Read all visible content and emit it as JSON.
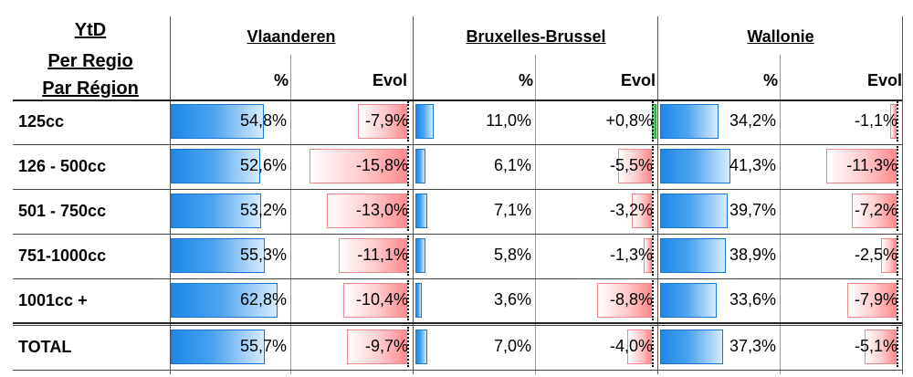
{
  "header": {
    "ytd": "YtD",
    "per_regio": "Per Regio",
    "par_region": "Par Région"
  },
  "regions": [
    {
      "name": "Vlaanderen",
      "pct_label": "%",
      "evol_label": "Evol"
    },
    {
      "name": "Bruxelles-Brussel",
      "pct_label": "%",
      "evol_label": "Evol"
    },
    {
      "name": "Wallonie",
      "pct_label": "%",
      "evol_label": "Evol"
    }
  ],
  "rows": [
    {
      "label": "125cc",
      "cells": [
        {
          "pct": "54,8%",
          "pct_value": 54.8,
          "evol": "-7,9%",
          "evol_value": -7.9
        },
        {
          "pct": "11,0%",
          "pct_value": 11.0,
          "evol": "+0,8%",
          "evol_value": 0.8
        },
        {
          "pct": "34,2%",
          "pct_value": 34.2,
          "evol": "-1,1%",
          "evol_value": -1.1
        }
      ]
    },
    {
      "label": "126 - 500cc",
      "cells": [
        {
          "pct": "52,6%",
          "pct_value": 52.6,
          "evol": "-15,8%",
          "evol_value": -15.8
        },
        {
          "pct": "6,1%",
          "pct_value": 6.1,
          "evol": "-5,5%",
          "evol_value": -5.5
        },
        {
          "pct": "41,3%",
          "pct_value": 41.3,
          "evol": "-11,3%",
          "evol_value": -11.3
        }
      ]
    },
    {
      "label": "501 - 750cc",
      "cells": [
        {
          "pct": "53,2%",
          "pct_value": 53.2,
          "evol": "-13,0%",
          "evol_value": -13.0
        },
        {
          "pct": "7,1%",
          "pct_value": 7.1,
          "evol": "-3,2%",
          "evol_value": -3.2
        },
        {
          "pct": "39,7%",
          "pct_value": 39.7,
          "evol": "-7,2%",
          "evol_value": -7.2
        }
      ]
    },
    {
      "label": "751-1000cc",
      "cells": [
        {
          "pct": "55,3%",
          "pct_value": 55.3,
          "evol": "-11,1%",
          "evol_value": -11.1
        },
        {
          "pct": "5,8%",
          "pct_value": 5.8,
          "evol": "-1,3%",
          "evol_value": -1.3
        },
        {
          "pct": "38,9%",
          "pct_value": 38.9,
          "evol": "-2,5%",
          "evol_value": -2.5
        }
      ]
    },
    {
      "label": "1001cc +",
      "cells": [
        {
          "pct": "62,8%",
          "pct_value": 62.8,
          "evol": "-10,4%",
          "evol_value": -10.4
        },
        {
          "pct": "3,6%",
          "pct_value": 3.6,
          "evol": "-8,8%",
          "evol_value": -8.8
        },
        {
          "pct": "33,6%",
          "pct_value": 33.6,
          "evol": "-7,9%",
          "evol_value": -7.9
        }
      ]
    },
    {
      "label": "TOTAL",
      "cells": [
        {
          "pct": "55,7%",
          "pct_value": 55.7,
          "evol": "-9,7%",
          "evol_value": -9.7
        },
        {
          "pct": "7,0%",
          "pct_value": 7.0,
          "evol": "-4,0%",
          "evol_value": -4.0
        },
        {
          "pct": "37,3%",
          "pct_value": 37.3,
          "evol": "-5,1%",
          "evol_value": -5.1
        }
      ]
    }
  ],
  "colors": {
    "share_bar": "#1e88e5",
    "negative_evol_bar": "#ff8a8e",
    "positive_evol_bar": "#2fb04b"
  }
}
